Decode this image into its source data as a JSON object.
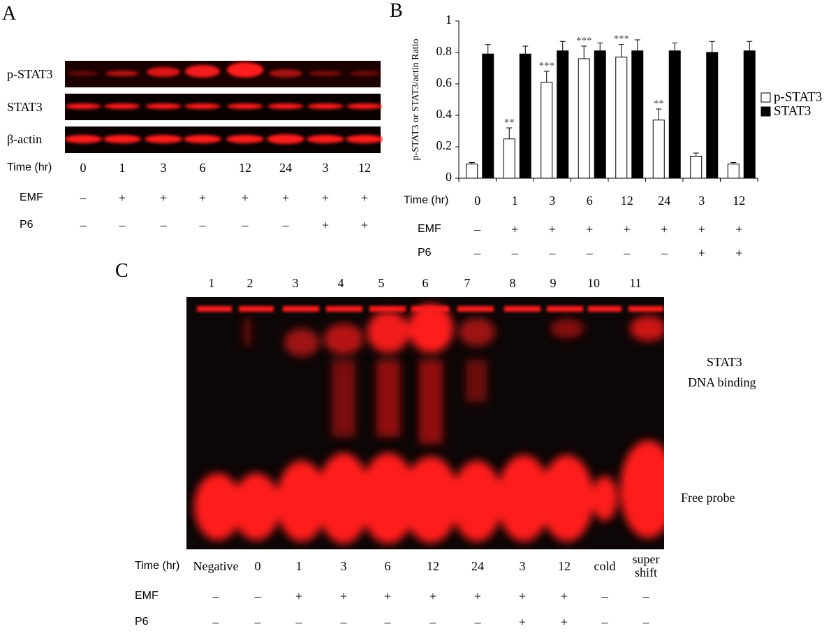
{
  "panel_a": {
    "label": "A",
    "blots": [
      "p-STAT3",
      "STAT3",
      "β-actin"
    ],
    "time_label": "Time (hr)",
    "times": [
      "0",
      "1",
      "3",
      "6",
      "12",
      "24",
      "3",
      "12"
    ],
    "conditions": [
      {
        "label": "EMF",
        "marks": [
          "–",
          "+",
          "+",
          "+",
          "+",
          "+",
          "+",
          "+"
        ]
      },
      {
        "label": "P6",
        "marks": [
          "–",
          "–",
          "–",
          "–",
          "–",
          "–",
          "+",
          "+"
        ]
      }
    ]
  },
  "chart_data": {
    "type": "bar",
    "panel_label": "B",
    "ylabel": "p-STAT3 or STAT3/actin Ratio",
    "category_label": "Time (hr)",
    "categories": [
      "0",
      "1",
      "3",
      "6",
      "12",
      "24",
      "3",
      "12"
    ],
    "conditions": [
      {
        "label": "EMF",
        "marks": [
          "–",
          "+",
          "+",
          "+",
          "+",
          "+",
          "+",
          "+"
        ]
      },
      {
        "label": "P6",
        "marks": [
          "–",
          "–",
          "–",
          "–",
          "–",
          "–",
          "+",
          "+"
        ]
      }
    ],
    "series": [
      {
        "name": "p-STAT3",
        "color": "#ffffff",
        "values": [
          0.09,
          0.25,
          0.61,
          0.76,
          0.77,
          0.37,
          0.14,
          0.09
        ],
        "errors": [
          0.01,
          0.07,
          0.07,
          0.08,
          0.08,
          0.07,
          0.02,
          0.01
        ],
        "annotations": [
          null,
          "**",
          "***",
          "***",
          "***",
          "**",
          null,
          null
        ]
      },
      {
        "name": "STAT3",
        "color": "#000000",
        "values": [
          0.79,
          0.79,
          0.81,
          0.81,
          0.81,
          0.81,
          0.8,
          0.81
        ],
        "errors": [
          0.06,
          0.05,
          0.06,
          0.05,
          0.07,
          0.05,
          0.07,
          0.06
        ]
      }
    ],
    "ylim": [
      0,
      1
    ],
    "yticks": [
      0,
      0.2,
      0.4,
      0.6,
      0.8,
      1
    ],
    "legend": "right"
  },
  "panel_c": {
    "label": "C",
    "lanes": [
      "1",
      "2",
      "3",
      "4",
      "5",
      "6",
      "7",
      "8",
      "9",
      "10",
      "11"
    ],
    "shift_label": [
      "STAT3",
      "DNA binding"
    ],
    "probe_label": "Free probe",
    "time_label": "Time (hr)",
    "times": [
      "Negative",
      "0",
      "1",
      "3",
      "6",
      "12",
      "24",
      "3",
      "12",
      "cold",
      "super shift"
    ],
    "conditions": [
      {
        "label": "EMF",
        "marks": [
          "–",
          "–",
          "+",
          "+",
          "+",
          "+",
          "+",
          "+",
          "+",
          "–",
          "–"
        ]
      },
      {
        "label": "P6",
        "marks": [
          "–",
          "–",
          "–",
          "–",
          "–",
          "–",
          "–",
          "+",
          "+",
          "–",
          "–"
        ]
      }
    ]
  }
}
